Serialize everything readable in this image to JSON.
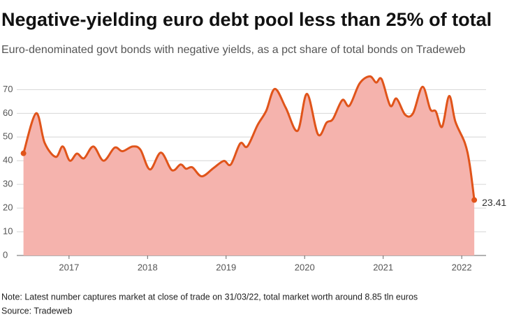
{
  "chart_data": {
    "type": "area",
    "title": "Negative-yielding euro debt pool less than 25% of total",
    "subtitle": "Euro-denominated govt bonds with negative yields, as a pct share of total bonds on Tradeweb",
    "note": "Note: Latest number captures market at close of trade on 31/03/22, total market worth around 8.85 tln euros",
    "source": "Source: Tradeweb",
    "x": [
      2016.42,
      2016.58,
      2016.69,
      2016.83,
      2016.92,
      2017.01,
      2017.1,
      2017.19,
      2017.31,
      2017.44,
      2017.58,
      2017.68,
      2017.81,
      2017.91,
      2018.03,
      2018.17,
      2018.31,
      2018.42,
      2018.49,
      2018.57,
      2018.69,
      2018.84,
      2018.97,
      2019.06,
      2019.18,
      2019.27,
      2019.4,
      2019.51,
      2019.62,
      2019.76,
      2019.91,
      2020.03,
      2020.17,
      2020.28,
      2020.36,
      2020.48,
      2020.57,
      2020.7,
      2020.83,
      2020.91,
      2020.98,
      2021.09,
      2021.17,
      2021.28,
      2021.38,
      2021.5,
      2021.6,
      2021.67,
      2021.75,
      2021.84,
      2021.92,
      2022.04,
      2022.1,
      2022.16
    ],
    "values": [
      43.1,
      60,
      47.5,
      41.6,
      46,
      40,
      43,
      41,
      46,
      40,
      45.5,
      44,
      46,
      44.6,
      36.3,
      43.4,
      36,
      38.4,
      36.6,
      37.2,
      33.4,
      36.9,
      39.9,
      38.4,
      47.3,
      46,
      55,
      61,
      70.3,
      62.3,
      52.6,
      68.2,
      51.1,
      56.1,
      57.6,
      65.6,
      63.2,
      72.6,
      75.6,
      73,
      74.4,
      63.2,
      66.2,
      59.4,
      60,
      71.2,
      61.7,
      60.8,
      54.3,
      67.3,
      56.4,
      47.5,
      38.7,
      23.41
    ],
    "line_color": "#e0541a",
    "fill_color": "#f5b3ad",
    "xlim": [
      2016.21,
      2022.31
    ],
    "xticks": [
      2017,
      2018,
      2019,
      2020,
      2021,
      2022
    ],
    "ylim": [
      0,
      76
    ],
    "yticks": [
      0,
      10,
      20,
      30,
      40,
      50,
      60,
      70
    ],
    "grid": true
  }
}
